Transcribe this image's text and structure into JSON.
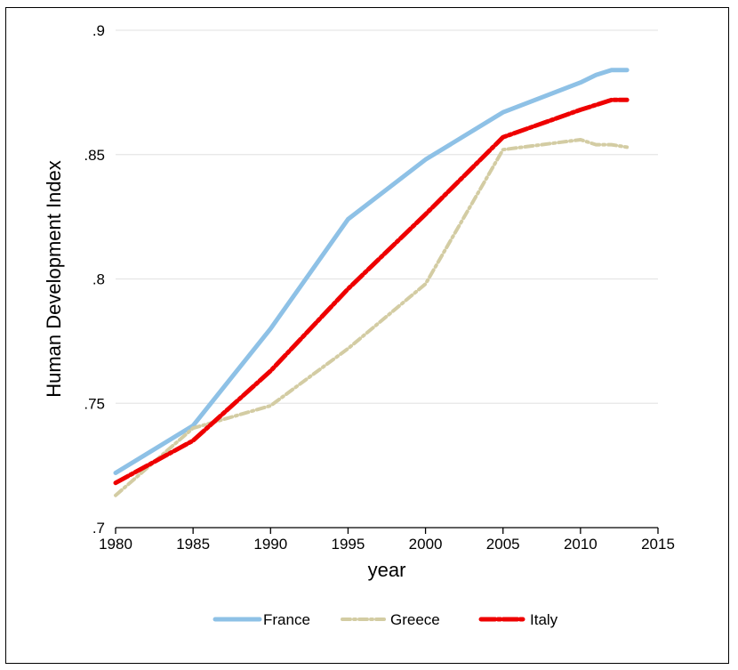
{
  "chart_data": {
    "type": "line",
    "title": "",
    "xlabel": "year",
    "ylabel": "Human Development Index",
    "xlim": [
      1980,
      2015
    ],
    "ylim": [
      0.7,
      0.9
    ],
    "x_ticks": [
      1980,
      1985,
      1990,
      1995,
      2000,
      2005,
      2010,
      2015
    ],
    "x_tick_labels": [
      "1980",
      "1985",
      "1990",
      "1995",
      "2000",
      "2005",
      "2010",
      "2015"
    ],
    "y_ticks": [
      0.7,
      0.75,
      0.8,
      0.85,
      0.9
    ],
    "y_tick_labels": [
      ".7",
      ".75",
      ".8",
      ".85",
      ".9"
    ],
    "grid": "horizontal",
    "legend_position": "bottom",
    "series": [
      {
        "name": "France",
        "color": "#8ec1e6",
        "dash": "solid",
        "x": [
          1980,
          1985,
          1990,
          1995,
          2000,
          2005,
          2010,
          2011,
          2012,
          2013
        ],
        "y": [
          0.722,
          0.741,
          0.78,
          0.824,
          0.848,
          0.867,
          0.879,
          0.882,
          0.884,
          0.884
        ]
      },
      {
        "name": "Greece",
        "color": "#d3cca3",
        "dash": "dashdot",
        "x": [
          1980,
          1985,
          1990,
          1995,
          2000,
          2005,
          2010,
          2011,
          2012,
          2013
        ],
        "y": [
          0.713,
          0.74,
          0.749,
          0.772,
          0.798,
          0.852,
          0.856,
          0.854,
          0.854,
          0.853
        ]
      },
      {
        "name": "Italy",
        "color": "#ee0000",
        "dash": "longdash",
        "x": [
          1980,
          1985,
          1990,
          1995,
          2000,
          2005,
          2010,
          2011,
          2012,
          2013
        ],
        "y": [
          0.718,
          0.735,
          0.763,
          0.796,
          0.826,
          0.857,
          0.868,
          0.87,
          0.872,
          0.872
        ]
      }
    ]
  }
}
